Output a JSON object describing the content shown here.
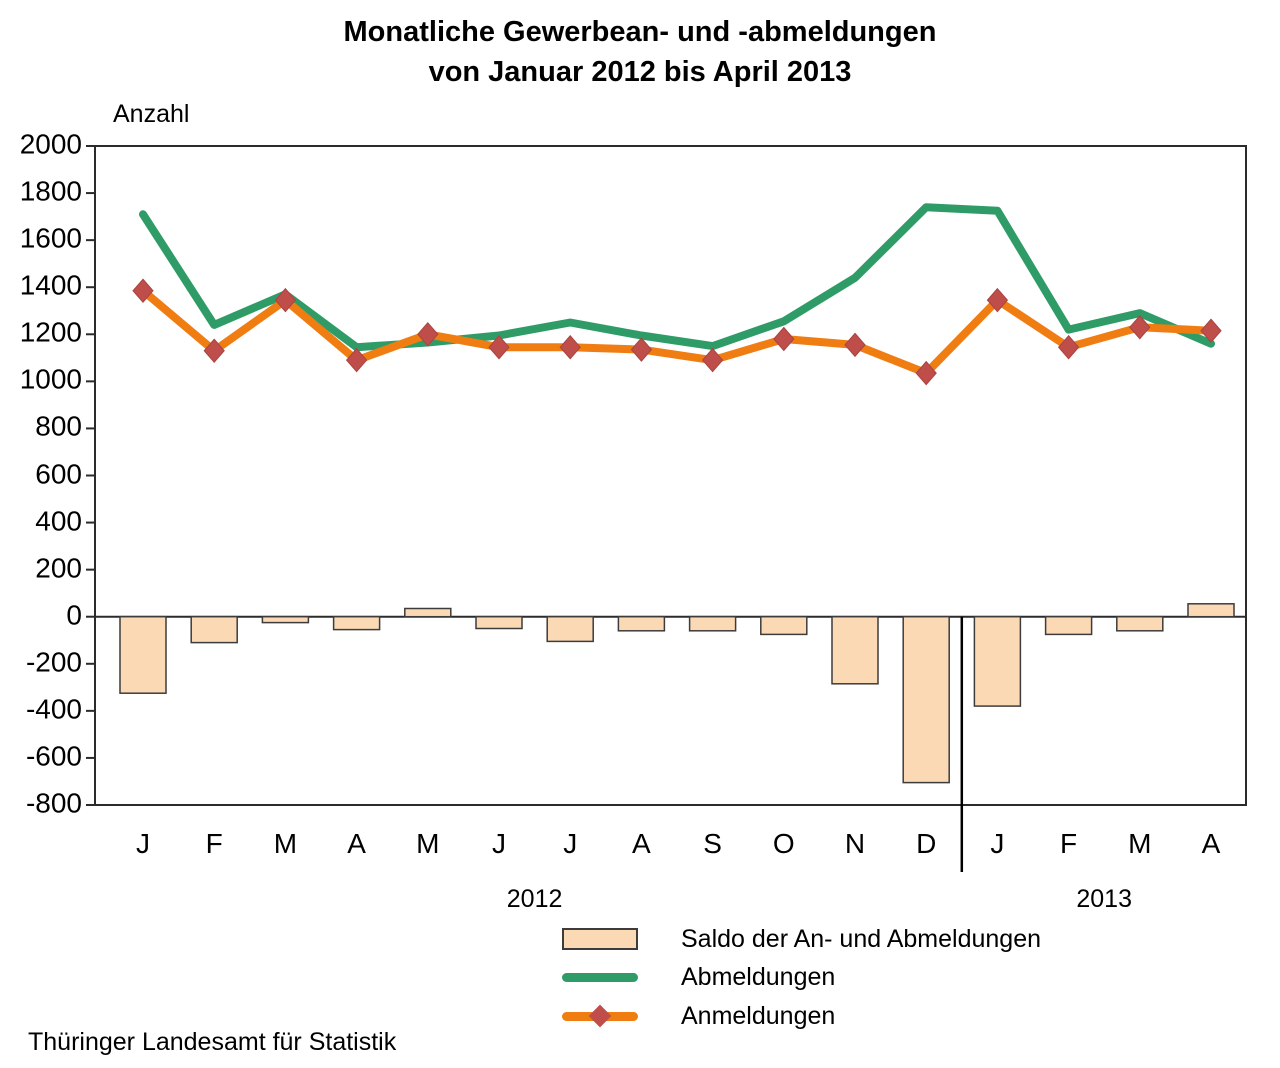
{
  "title": {
    "line1": "Monatliche Gewerbean- und -abmeldungen",
    "line2": "von Januar 2012 bis April 2013"
  },
  "axis": {
    "y_label": "Anzahl",
    "y_ticks": [
      2000,
      1800,
      1600,
      1400,
      1200,
      1000,
      800,
      600,
      400,
      200,
      0,
      -200,
      -400,
      -600,
      -800
    ],
    "years": [
      "2012",
      "2013"
    ]
  },
  "legend": {
    "items": [
      {
        "label": "Saldo der An- und Abmeldungen",
        "swatch": "bar",
        "color": "#FBD9B5",
        "border_color": "#3C3C3C"
      },
      {
        "label": "Abmeldungen",
        "swatch": "line",
        "color": "#2F9C68"
      },
      {
        "label": "Anmeldungen",
        "swatch": "line-diamond",
        "color": "#EF7D12",
        "marker_color": "#BF4D49"
      }
    ]
  },
  "footer": "Thüringer Landesamt für Statistik",
  "chart_data": {
    "type": "combo-line-bar",
    "title": "Monatliche Gewerbean- und -abmeldungen von Januar 2012 bis April 2013",
    "ylabel": "Anzahl",
    "categories": [
      "J",
      "F",
      "M",
      "A",
      "M",
      "J",
      "J",
      "A",
      "S",
      "O",
      "N",
      "D",
      "J",
      "F",
      "M",
      "A"
    ],
    "year_groups": [
      {
        "year": "2012",
        "months": 12
      },
      {
        "year": "2013",
        "months": 4
      }
    ],
    "ylim": [
      -800,
      2000
    ],
    "y_tick_step": 200,
    "grid": "off",
    "legend_position": "bottom",
    "series": [
      {
        "name": "Saldo der An- und Abmeldungen",
        "type": "bar",
        "color": "#FBD9B5",
        "border_color": "#3C3C3C",
        "values": [
          -325,
          -110,
          -25,
          -55,
          35,
          -50,
          -105,
          -60,
          -60,
          -75,
          -285,
          -705,
          -380,
          -75,
          -60,
          55
        ]
      },
      {
        "name": "Abmeldungen",
        "type": "line",
        "color": "#2F9C68",
        "values": [
          1710,
          1240,
          1370,
          1145,
          1165,
          1195,
          1250,
          1195,
          1150,
          1255,
          1440,
          1740,
          1725,
          1220,
          1290,
          1160
        ]
      },
      {
        "name": "Anmeldungen",
        "type": "line",
        "marker": "diamond",
        "color": "#EF7D12",
        "marker_color": "#BF4D49",
        "values": [
          1385,
          1130,
          1345,
          1090,
          1200,
          1145,
          1145,
          1135,
          1090,
          1180,
          1155,
          1035,
          1345,
          1145,
          1230,
          1215
        ]
      }
    ]
  }
}
